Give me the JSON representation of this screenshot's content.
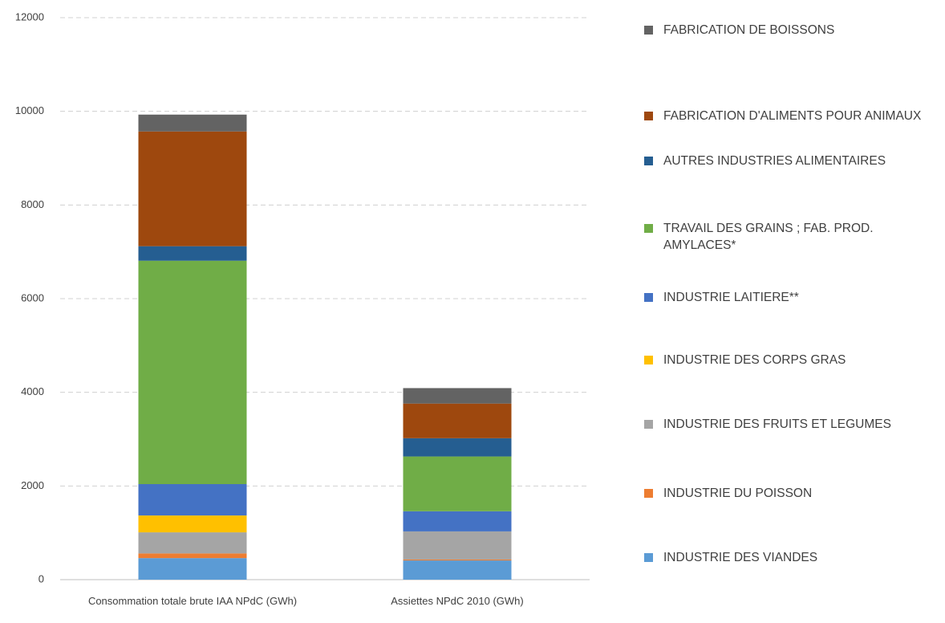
{
  "chart_data": {
    "type": "stacked_bar",
    "categories": [
      "Consommation totale brute IAA NPdC (GWh)",
      "Assiettes NPdC 2010  (GWh)"
    ],
    "series": [
      {
        "name": "INDUSTRIE DES VIANDES",
        "color": "#5b9bd5",
        "values": [
          460,
          410
        ]
      },
      {
        "name": "INDUSTRIE DU POISSON",
        "color": "#ed7d31",
        "values": [
          100,
          20
        ]
      },
      {
        "name": "INDUSTRIE DES FRUITS ET LEGUMES",
        "color": "#a5a5a5",
        "values": [
          450,
          600
        ]
      },
      {
        "name": "INDUSTRIE DES CORPS GRAS",
        "color": "#ffc000",
        "values": [
          360,
          0
        ]
      },
      {
        "name": "INDUSTRIE LAITIERE**",
        "color": "#4472c4",
        "values": [
          670,
          430
        ]
      },
      {
        "name": "TRAVAIL DES GRAINS ; FAB. PROD. AMYLACES*",
        "color": "#70ad47",
        "values": [
          4770,
          1170
        ]
      },
      {
        "name": "AUTRES INDUSTRIES ALIMENTAIRES",
        "color": "#255e91",
        "values": [
          310,
          390
        ]
      },
      {
        "name": "FABRICATION D'ALIMENTS POUR ANIMAUX",
        "color": "#9e480e",
        "values": [
          2450,
          740
        ]
      },
      {
        "name": "FABRICATION DE BOISSONS",
        "color": "#636363",
        "values": [
          360,
          330
        ]
      }
    ],
    "ylim": [
      0,
      12000
    ],
    "yticks": [
      0,
      2000,
      4000,
      6000,
      8000,
      10000,
      12000
    ],
    "grid": true,
    "legend": "right"
  }
}
